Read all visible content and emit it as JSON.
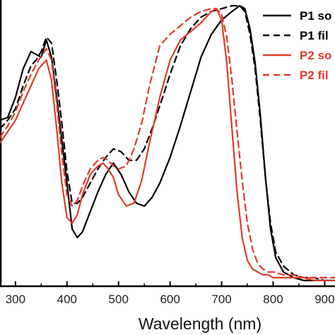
{
  "chart_data": {
    "type": "line",
    "title": "",
    "xlabel": "Wavelength (nm)",
    "ylabel": "",
    "xlim": [
      270,
      920
    ],
    "ylim": [
      0,
      1.0
    ],
    "x_ticks": [
      300,
      400,
      500,
      600,
      700,
      800,
      900
    ],
    "grid": false,
    "legend_position": "top-right",
    "series": [
      {
        "name": "P1 so",
        "color": "#000000",
        "dash": "solid",
        "x": [
          270,
          285,
          300,
          315,
          330,
          340,
          350,
          360,
          370,
          380,
          390,
          400,
          410,
          420,
          430,
          445,
          460,
          475,
          490,
          505,
          520,
          535,
          550,
          565,
          580,
          600,
          620,
          640,
          660,
          680,
          700,
          720,
          735,
          745,
          755,
          765,
          775,
          785,
          795,
          805,
          820,
          840,
          860,
          880,
          900,
          920
        ],
        "y": [
          0.58,
          0.59,
          0.66,
          0.76,
          0.82,
          0.81,
          0.8,
          0.86,
          0.8,
          0.66,
          0.51,
          0.36,
          0.2,
          0.17,
          0.19,
          0.26,
          0.33,
          0.39,
          0.43,
          0.39,
          0.33,
          0.29,
          0.28,
          0.31,
          0.36,
          0.45,
          0.56,
          0.68,
          0.8,
          0.88,
          0.93,
          0.96,
          0.98,
          0.97,
          0.9,
          0.78,
          0.6,
          0.38,
          0.2,
          0.1,
          0.05,
          0.03,
          0.02,
          0.02,
          0.02,
          0.02
        ]
      },
      {
        "name": "P1 fil",
        "color": "#000000",
        "dash": "dashed",
        "x": [
          270,
          285,
          300,
          315,
          330,
          340,
          350,
          360,
          370,
          380,
          390,
          400,
          410,
          420,
          430,
          445,
          460,
          475,
          490,
          505,
          520,
          535,
          550,
          565,
          580,
          600,
          620,
          640,
          660,
          680,
          700,
          720,
          735,
          745,
          755,
          765,
          775,
          785,
          795,
          805,
          820,
          840,
          860,
          880,
          900,
          920
        ],
        "y": [
          0.55,
          0.58,
          0.62,
          0.7,
          0.77,
          0.79,
          0.82,
          0.87,
          0.85,
          0.72,
          0.57,
          0.4,
          0.29,
          0.29,
          0.31,
          0.36,
          0.41,
          0.45,
          0.48,
          0.47,
          0.44,
          0.44,
          0.48,
          0.55,
          0.63,
          0.74,
          0.84,
          0.9,
          0.94,
          0.96,
          0.97,
          0.98,
          0.98,
          0.96,
          0.88,
          0.76,
          0.58,
          0.38,
          0.22,
          0.12,
          0.07,
          0.04,
          0.03,
          0.03,
          0.02,
          0.02
        ]
      },
      {
        "name": "P2 so",
        "color": "#e03a2a",
        "dash": "solid",
        "x": [
          270,
          285,
          300,
          315,
          330,
          345,
          360,
          370,
          380,
          390,
          400,
          410,
          420,
          430,
          445,
          460,
          470,
          480,
          490,
          500,
          515,
          530,
          545,
          560,
          580,
          600,
          620,
          640,
          660,
          680,
          690,
          700,
          710,
          720,
          730,
          740,
          750,
          760,
          770,
          780,
          790,
          800,
          820,
          840,
          860,
          880,
          900,
          920
        ],
        "y": [
          0.5,
          0.54,
          0.58,
          0.64,
          0.7,
          0.76,
          0.79,
          0.72,
          0.55,
          0.36,
          0.24,
          0.22,
          0.25,
          0.32,
          0.39,
          0.42,
          0.43,
          0.41,
          0.38,
          0.32,
          0.28,
          0.29,
          0.37,
          0.5,
          0.66,
          0.79,
          0.86,
          0.89,
          0.92,
          0.96,
          0.97,
          0.93,
          0.78,
          0.55,
          0.33,
          0.17,
          0.09,
          0.06,
          0.05,
          0.04,
          0.04,
          0.03,
          0.03,
          0.03,
          0.03,
          0.02,
          0.02,
          0.02
        ]
      },
      {
        "name": "P2 fil",
        "color": "#e03a2a",
        "dash": "dashed",
        "x": [
          270,
          285,
          300,
          315,
          330,
          345,
          360,
          370,
          380,
          390,
          400,
          410,
          420,
          430,
          445,
          460,
          470,
          480,
          490,
          500,
          515,
          530,
          545,
          560,
          580,
          600,
          620,
          640,
          660,
          680,
          690,
          700,
          710,
          720,
          730,
          740,
          750,
          760,
          770,
          780,
          790,
          800,
          820,
          840,
          860,
          880,
          900,
          920
        ],
        "y": [
          0.52,
          0.56,
          0.61,
          0.68,
          0.74,
          0.79,
          0.83,
          0.79,
          0.64,
          0.46,
          0.32,
          0.28,
          0.3,
          0.35,
          0.41,
          0.44,
          0.45,
          0.44,
          0.42,
          0.41,
          0.42,
          0.48,
          0.57,
          0.7,
          0.84,
          0.88,
          0.91,
          0.94,
          0.96,
          0.97,
          0.97,
          0.95,
          0.87,
          0.72,
          0.54,
          0.37,
          0.22,
          0.13,
          0.08,
          0.06,
          0.05,
          0.05,
          0.04,
          0.04,
          0.03,
          0.03,
          0.03,
          0.03
        ]
      }
    ]
  }
}
